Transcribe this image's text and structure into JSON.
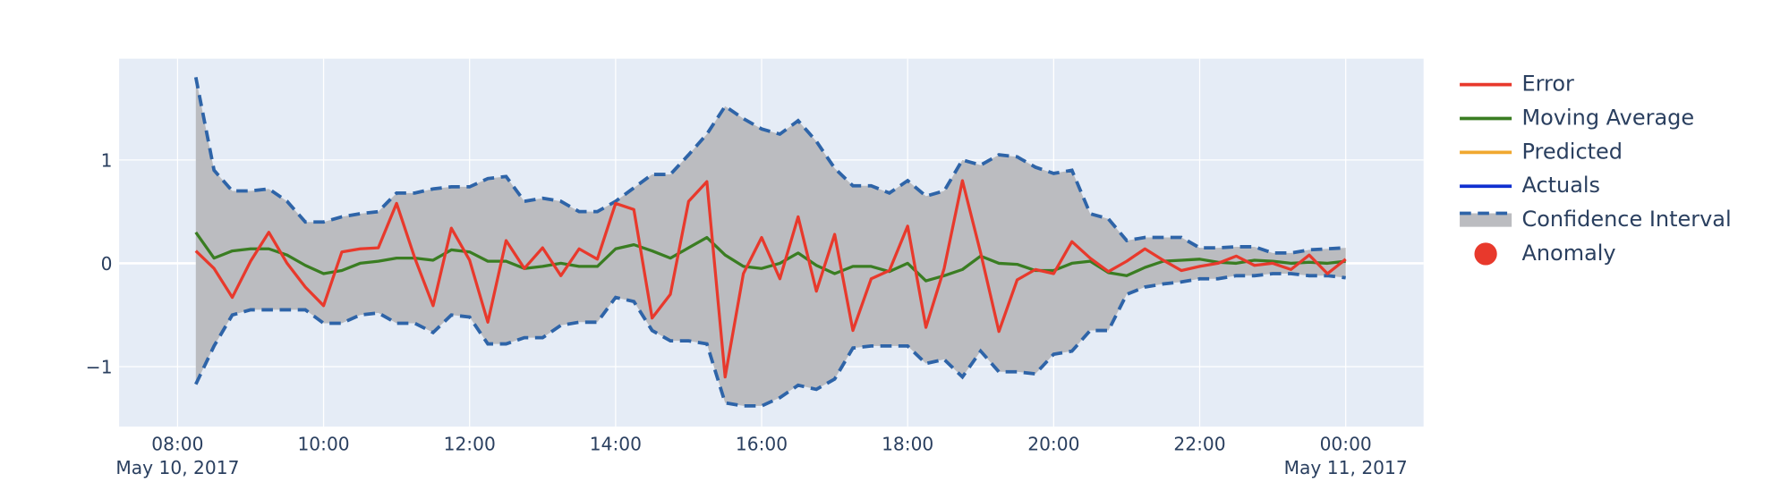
{
  "chart_data": {
    "type": "line",
    "x": [
      "2017-05-10 08:15",
      "2017-05-10 08:30",
      "2017-05-10 08:45",
      "2017-05-10 09:00",
      "2017-05-10 09:15",
      "2017-05-10 09:30",
      "2017-05-10 09:45",
      "2017-05-10 10:00",
      "2017-05-10 10:15",
      "2017-05-10 10:30",
      "2017-05-10 10:45",
      "2017-05-10 11:00",
      "2017-05-10 11:15",
      "2017-05-10 11:30",
      "2017-05-10 11:45",
      "2017-05-10 12:00",
      "2017-05-10 12:15",
      "2017-05-10 12:30",
      "2017-05-10 12:45",
      "2017-05-10 13:00",
      "2017-05-10 13:15",
      "2017-05-10 13:30",
      "2017-05-10 13:45",
      "2017-05-10 14:00",
      "2017-05-10 14:15",
      "2017-05-10 14:30",
      "2017-05-10 14:45",
      "2017-05-10 15:00",
      "2017-05-10 15:15",
      "2017-05-10 15:30",
      "2017-05-10 15:45",
      "2017-05-10 16:00",
      "2017-05-10 16:15",
      "2017-05-10 16:30",
      "2017-05-10 16:45",
      "2017-05-10 17:00",
      "2017-05-10 17:15",
      "2017-05-10 17:30",
      "2017-05-10 17:45",
      "2017-05-10 18:00",
      "2017-05-10 18:15",
      "2017-05-10 18:30",
      "2017-05-10 18:45",
      "2017-05-10 19:00",
      "2017-05-10 19:15",
      "2017-05-10 19:30",
      "2017-05-10 19:45",
      "2017-05-10 20:00",
      "2017-05-10 20:15",
      "2017-05-10 20:30",
      "2017-05-10 20:45",
      "2017-05-10 21:00",
      "2017-05-10 21:15",
      "2017-05-10 21:30",
      "2017-05-10 21:45",
      "2017-05-10 22:00",
      "2017-05-10 22:15",
      "2017-05-10 22:30",
      "2017-05-10 22:45",
      "2017-05-10 23:00",
      "2017-05-10 23:15",
      "2017-05-10 23:30",
      "2017-05-10 23:45",
      "2017-05-11 00:00"
    ],
    "series": [
      {
        "name": "Error",
        "color": "#e8392c",
        "mode": "lines",
        "values": [
          0.12,
          -0.05,
          -0.33,
          0.02,
          0.3,
          0.0,
          -0.23,
          -0.41,
          0.11,
          0.14,
          0.15,
          0.58,
          0.05,
          -0.41,
          0.34,
          0.03,
          -0.57,
          0.22,
          -0.05,
          0.15,
          -0.12,
          0.14,
          0.04,
          0.58,
          0.52,
          -0.53,
          -0.3,
          0.6,
          0.79,
          -1.1,
          -0.1,
          0.25,
          -0.15,
          0.45,
          -0.27,
          0.28,
          -0.65,
          -0.15,
          -0.07,
          0.36,
          -0.62,
          -0.05,
          0.8,
          0.1,
          -0.66,
          -0.16,
          -0.06,
          -0.1,
          0.21,
          0.05,
          -0.08,
          0.02,
          0.14,
          0.03,
          -0.07,
          -0.03,
          0.0,
          0.07,
          -0.02,
          0.0,
          -0.06,
          0.08,
          -0.1,
          0.04
        ]
      },
      {
        "name": "Moving Average",
        "color": "#3a7d22",
        "mode": "lines",
        "values": [
          0.3,
          0.05,
          0.12,
          0.14,
          0.14,
          0.08,
          -0.02,
          -0.1,
          -0.07,
          0.0,
          0.02,
          0.05,
          0.05,
          0.03,
          0.13,
          0.11,
          0.02,
          0.02,
          -0.05,
          -0.03,
          0.0,
          -0.03,
          -0.03,
          0.14,
          0.18,
          0.12,
          0.05,
          0.15,
          0.25,
          0.08,
          -0.03,
          -0.05,
          0.0,
          0.1,
          -0.02,
          -0.1,
          -0.03,
          -0.03,
          -0.08,
          0.0,
          -0.17,
          -0.12,
          -0.06,
          0.07,
          0.0,
          -0.01,
          -0.07,
          -0.07,
          0.0,
          0.02,
          -0.09,
          -0.12,
          -0.04,
          0.02,
          0.03,
          0.04,
          0.01,
          0.0,
          0.03,
          0.02,
          0.0,
          0.01,
          0.0,
          0.02
        ]
      },
      {
        "name": "Predicted",
        "color": "#f0a830",
        "mode": "lines"
      },
      {
        "name": "Actuals",
        "color": "#1030d0",
        "mode": "lines"
      },
      {
        "name": "Confidence Interval",
        "color": "#2e64a8",
        "fill": "#bbbcc0",
        "mode": "band",
        "upper": [
          1.8,
          0.9,
          0.7,
          0.7,
          0.72,
          0.6,
          0.4,
          0.4,
          0.45,
          0.48,
          0.5,
          0.68,
          0.68,
          0.72,
          0.74,
          0.74,
          0.82,
          0.84,
          0.6,
          0.63,
          0.6,
          0.5,
          0.5,
          0.6,
          0.73,
          0.86,
          0.86,
          1.05,
          1.25,
          1.52,
          1.4,
          1.3,
          1.25,
          1.38,
          1.18,
          0.92,
          0.75,
          0.75,
          0.68,
          0.8,
          0.65,
          0.7,
          1.0,
          0.95,
          1.05,
          1.03,
          0.93,
          0.87,
          0.9,
          0.48,
          0.43,
          0.22,
          0.25,
          0.25,
          0.25,
          0.15,
          0.15,
          0.16,
          0.16,
          0.1,
          0.1,
          0.13,
          0.14,
          0.15
        ],
        "lower": [
          -1.17,
          -0.8,
          -0.5,
          -0.45,
          -0.45,
          -0.45,
          -0.45,
          -0.58,
          -0.58,
          -0.5,
          -0.48,
          -0.58,
          -0.58,
          -0.67,
          -0.5,
          -0.52,
          -0.78,
          -0.78,
          -0.72,
          -0.72,
          -0.6,
          -0.57,
          -0.57,
          -0.33,
          -0.37,
          -0.65,
          -0.75,
          -0.75,
          -0.78,
          -1.35,
          -1.38,
          -1.38,
          -1.3,
          -1.18,
          -1.22,
          -1.12,
          -0.82,
          -0.8,
          -0.8,
          -0.8,
          -0.97,
          -0.93,
          -1.1,
          -0.85,
          -1.05,
          -1.05,
          -1.07,
          -0.88,
          -0.85,
          -0.65,
          -0.65,
          -0.3,
          -0.23,
          -0.2,
          -0.18,
          -0.15,
          -0.15,
          -0.12,
          -0.12,
          -0.1,
          -0.1,
          -0.12,
          -0.12,
          -0.14
        ]
      },
      {
        "name": "Anomaly",
        "color": "#e8392c",
        "mode": "markers"
      }
    ],
    "xlim": [
      "2017-05-10 07:12",
      "2017-05-11 01:04"
    ],
    "xticks": [
      {
        "value": "2017-05-10 08:00",
        "label": "08:00\nMay 10, 2017"
      },
      {
        "value": "2017-05-10 10:00",
        "label": "10:00"
      },
      {
        "value": "2017-05-10 12:00",
        "label": "12:00"
      },
      {
        "value": "2017-05-10 14:00",
        "label": "14:00"
      },
      {
        "value": "2017-05-10 16:00",
        "label": "16:00"
      },
      {
        "value": "2017-05-10 18:00",
        "label": "18:00"
      },
      {
        "value": "2017-05-10 20:00",
        "label": "20:00"
      },
      {
        "value": "2017-05-10 22:00",
        "label": "22:00"
      },
      {
        "value": "2017-05-11 00:00",
        "label": "00:00\nMay 11, 2017"
      }
    ],
    "ylim": [
      -1.58,
      1.98
    ],
    "yticks": [
      {
        "value": -1,
        "label": "−1"
      },
      0,
      1
    ],
    "grid": true,
    "legend": "right"
  }
}
